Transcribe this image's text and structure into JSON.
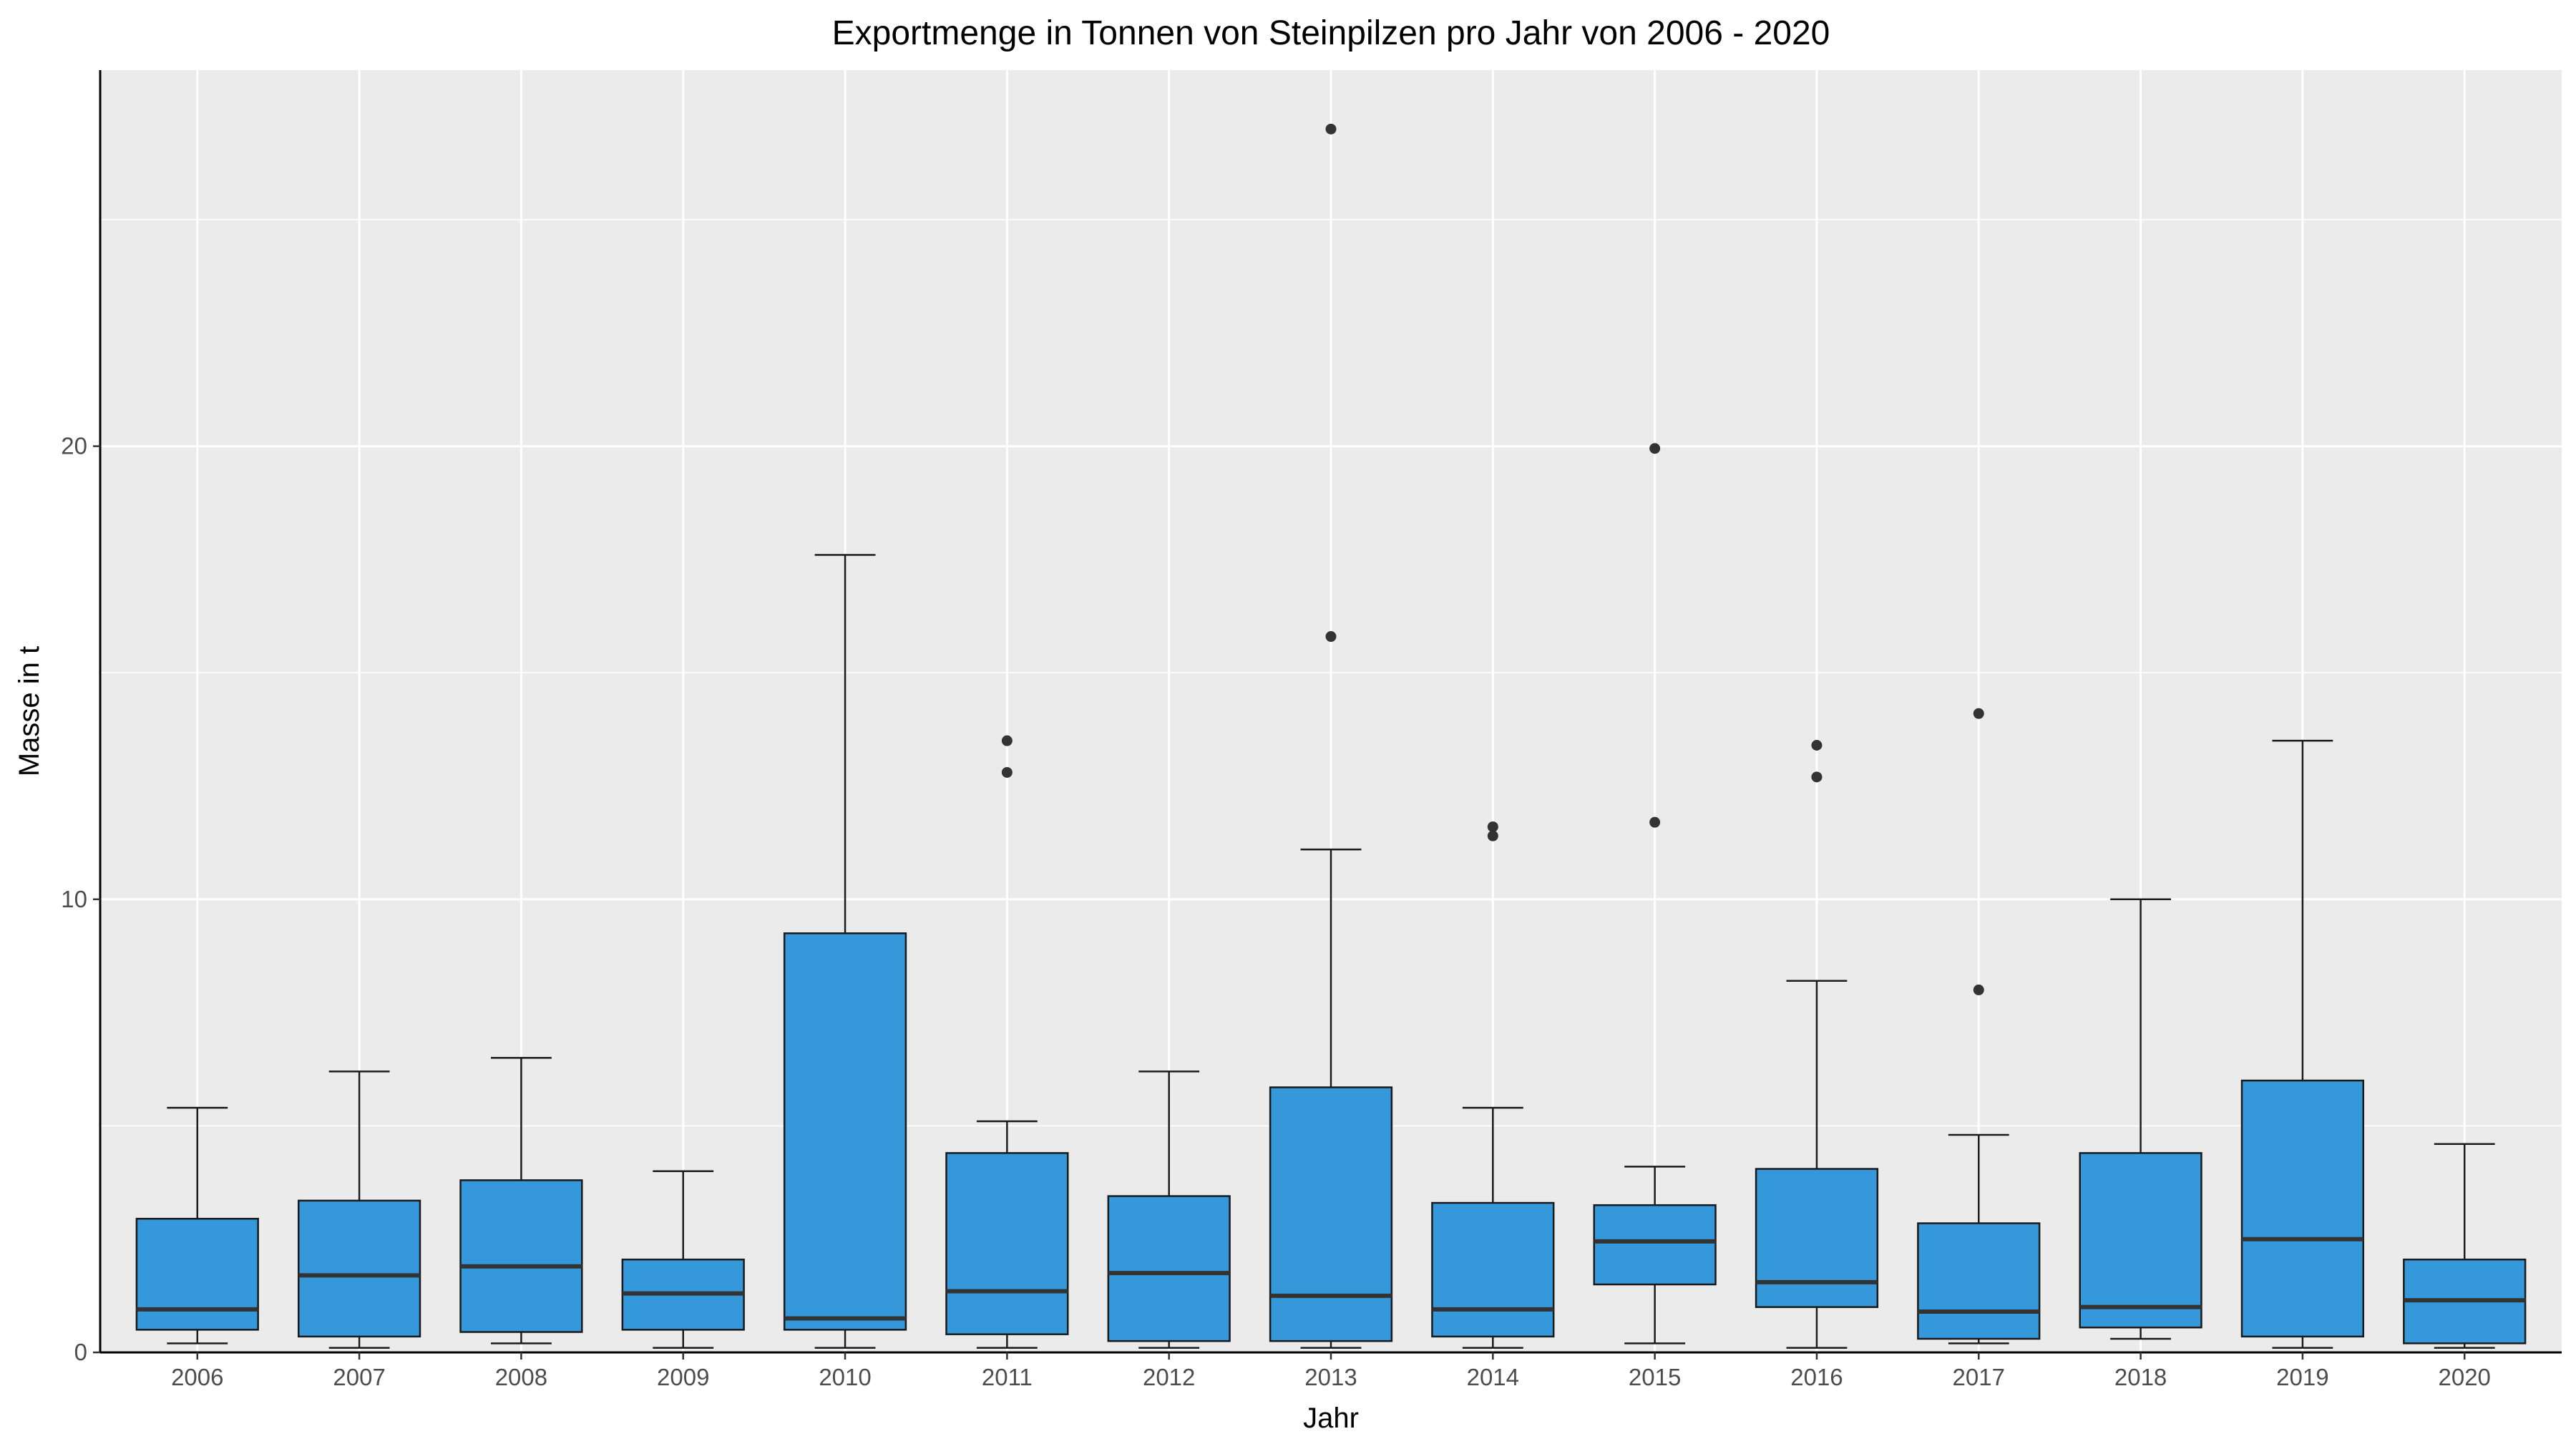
{
  "chart_data": {
    "type": "boxplot",
    "title": "Exportmenge in Tonnen von Steinpilzen pro Jahr von 2006 - 2020",
    "xlabel": "Jahr",
    "ylabel": "Masse in t",
    "ylim": [
      0,
      28.3
    ],
    "yticks": [
      0,
      10,
      20
    ],
    "grid": true,
    "fill_color": "#3498DB",
    "panel_color": "#EBEBEB",
    "categories": [
      "2006",
      "2007",
      "2008",
      "2009",
      "2010",
      "2011",
      "2012",
      "2013",
      "2014",
      "2015",
      "2016",
      "2017",
      "2018",
      "2019",
      "2020"
    ],
    "boxes": [
      {
        "year": "2006",
        "min": 0.2,
        "q1": 0.5,
        "median": 0.95,
        "q3": 2.95,
        "max": 5.4,
        "outliers": []
      },
      {
        "year": "2007",
        "min": 0.1,
        "q1": 0.35,
        "median": 1.7,
        "q3": 3.35,
        "max": 6.2,
        "outliers": []
      },
      {
        "year": "2008",
        "min": 0.2,
        "q1": 0.45,
        "median": 1.9,
        "q3": 3.8,
        "max": 6.5,
        "outliers": []
      },
      {
        "year": "2009",
        "min": 0.1,
        "q1": 0.5,
        "median": 1.3,
        "q3": 2.05,
        "max": 4.0,
        "outliers": []
      },
      {
        "year": "2010",
        "min": 0.1,
        "q1": 0.5,
        "median": 0.75,
        "q3": 9.25,
        "max": 17.6,
        "outliers": []
      },
      {
        "year": "2011",
        "min": 0.1,
        "q1": 0.4,
        "median": 1.35,
        "q3": 4.4,
        "max": 5.1,
        "outliers": [
          12.8,
          13.5
        ]
      },
      {
        "year": "2012",
        "min": 0.1,
        "q1": 0.25,
        "median": 1.75,
        "q3": 3.45,
        "max": 6.2,
        "outliers": []
      },
      {
        "year": "2013",
        "min": 0.1,
        "q1": 0.25,
        "median": 1.25,
        "q3": 5.85,
        "max": 11.1,
        "outliers": [
          15.8,
          27.0
        ]
      },
      {
        "year": "2014",
        "min": 0.1,
        "q1": 0.35,
        "median": 0.95,
        "q3": 3.3,
        "max": 5.4,
        "outliers": [
          11.4,
          11.6
        ]
      },
      {
        "year": "2015",
        "min": 0.2,
        "q1": 1.5,
        "median": 2.45,
        "q3": 3.25,
        "max": 4.1,
        "outliers": [
          11.7,
          19.95
        ]
      },
      {
        "year": "2016",
        "min": 0.1,
        "q1": 1.0,
        "median": 1.55,
        "q3": 4.05,
        "max": 8.2,
        "outliers": [
          12.7,
          13.4
        ]
      },
      {
        "year": "2017",
        "min": 0.2,
        "q1": 0.3,
        "median": 0.9,
        "q3": 2.85,
        "max": 4.8,
        "outliers": [
          8.0,
          14.1
        ]
      },
      {
        "year": "2018",
        "min": 0.3,
        "q1": 0.55,
        "median": 1.0,
        "q3": 4.4,
        "max": 10.0,
        "outliers": []
      },
      {
        "year": "2019",
        "min": 0.1,
        "q1": 0.35,
        "median": 2.5,
        "q3": 6.0,
        "max": 13.5,
        "outliers": []
      },
      {
        "year": "2020",
        "min": 0.1,
        "q1": 0.2,
        "median": 1.15,
        "q3": 2.05,
        "max": 4.6,
        "outliers": []
      }
    ]
  }
}
